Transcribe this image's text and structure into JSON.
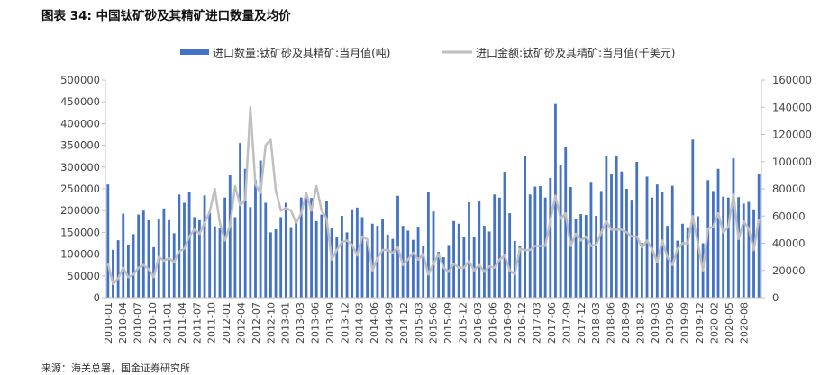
{
  "header": {
    "title": "图表 34:  中国钛矿砂及其精矿进口数量及均价"
  },
  "footer": {
    "source": "来源：海关总署，国金证券研究所"
  },
  "colors": {
    "bar": "#4472C4",
    "line": "#BFBFBF",
    "axis": "#BFBFBF",
    "title_rule": "#1F3C7A"
  },
  "chart_data": {
    "type": "bar",
    "title": "",
    "xlabel": "",
    "ylabel": "",
    "ylim": [
      0,
      500000
    ],
    "y2lim": [
      0,
      160000
    ],
    "y_ticks": [
      "500000",
      "450000",
      "400000",
      "350000",
      "300000",
      "250000",
      "200000",
      "150000",
      "100000",
      "50000",
      "0"
    ],
    "y2_ticks": [
      "160000",
      "140000",
      "120000",
      "100000",
      "80000",
      "60000",
      "40000",
      "20000",
      "0"
    ],
    "x_tick_labels": [
      "2010-01",
      "2010-04",
      "2010-07",
      "2010-10",
      "2011-01",
      "2011-04",
      "2011-07",
      "2011-10",
      "2012-01",
      "2012-04",
      "2012-07",
      "2012-10",
      "2013-01",
      "2013-03",
      "2013-06",
      "2013-09",
      "2013-12",
      "2014-03",
      "2014-06",
      "2014-09",
      "2014-12",
      "2015-03",
      "2015-06",
      "2015-09",
      "2015-12",
      "2016-03",
      "2016-06",
      "2016-09",
      "2016-12",
      "2017-03",
      "2017-06",
      "2017-09",
      "2017-12",
      "2018-03",
      "2018-06",
      "2018-09",
      "2018-12",
      "2019-03",
      "2019-06",
      "2019-09",
      "2019-12",
      "2020-02",
      "2020-05",
      "2020-08"
    ],
    "series": [
      {
        "name": "进口数量:钛矿砂及其精矿:当月值(吨)",
        "type": "bar",
        "axis": "left",
        "values": [
          260000,
          110000,
          132000,
          193000,
          122000,
          146000,
          191000,
          200000,
          178000,
          116000,
          181000,
          205000,
          178000,
          148000,
          237000,
          218000,
          243000,
          185000,
          178000,
          235000,
          195000,
          164000,
          160000,
          230000,
          281000,
          185000,
          355000,
          296000,
          208000,
          270000,
          315000,
          218000,
          150000,
          157000,
          185000,
          218000,
          162000,
          175000,
          230000,
          230000,
          229000,
          176000,
          191000,
          222000,
          160000,
          140000,
          188000,
          150000,
          203000,
          207000,
          185000,
          130000,
          170000,
          165000,
          180000,
          145000,
          135000,
          234000,
          165000,
          154000,
          133000,
          163000,
          120000,
          242000,
          198000,
          105000,
          93000,
          121000,
          176000,
          170000,
          140000,
          219000,
          140000,
          221000,
          165000,
          152000,
          237000,
          230000,
          289000,
          194000,
          130000,
          119000,
          325000,
          237000,
          255000,
          256000,
          230000,
          275000,
          445000,
          304000,
          346000,
          254000,
          180000,
          192000,
          190000,
          266000,
          188000,
          245000,
          325000,
          285000,
          325000,
          290000,
          250000,
          225000,
          312000,
          126000,
          278000,
          230000,
          260000,
          243000,
          165000,
          257000,
          131000,
          170000,
          162000,
          363000,
          187000,
          125000,
          270000,
          245000,
          296000,
          232000,
          230000,
          320000,
          231000,
          216000,
          220000,
          203000,
          285000
        ]
      },
      {
        "name": "进口金额:钛矿砂及其精矿:当月值(千美元)",
        "type": "line",
        "axis": "right",
        "values": [
          25000,
          10000,
          14000,
          22000,
          15000,
          17000,
          22000,
          24000,
          21000,
          15000,
          30000,
          27000,
          29000,
          26000,
          34000,
          36000,
          45000,
          50000,
          47000,
          55000,
          63000,
          80000,
          55000,
          42000,
          53000,
          82000,
          68000,
          72000,
          140000,
          83000,
          77000,
          112000,
          116000,
          79000,
          64000,
          66000,
          64000,
          55000,
          62000,
          77000,
          64000,
          82000,
          64000,
          58000,
          28000,
          35000,
          41000,
          42000,
          39000,
          31000,
          45000,
          43000,
          20000,
          29000,
          35000,
          35000,
          33000,
          37000,
          24000,
          28000,
          33000,
          28000,
          32000,
          17000,
          25000,
          32000,
          22000,
          19000,
          25000,
          22000,
          22000,
          27000,
          20000,
          24000,
          19000,
          23000,
          22000,
          28000,
          31000,
          20000,
          17000,
          36000,
          35000,
          35000,
          38000,
          38000,
          38000,
          57000,
          75000,
          58000,
          62000,
          38000,
          47000,
          42000,
          45000,
          38000,
          39000,
          48000,
          56000,
          50000,
          50000,
          50000,
          48000,
          45000,
          45000,
          37000,
          42000,
          36000,
          26000,
          42000,
          30000,
          24000,
          36000,
          40000,
          40000,
          60000,
          40000,
          20000,
          51000,
          52000,
          62000,
          48000,
          52000,
          76000,
          43000,
          56000,
          51000,
          35000,
          58000
        ]
      }
    ],
    "legend_position": "top-center"
  }
}
